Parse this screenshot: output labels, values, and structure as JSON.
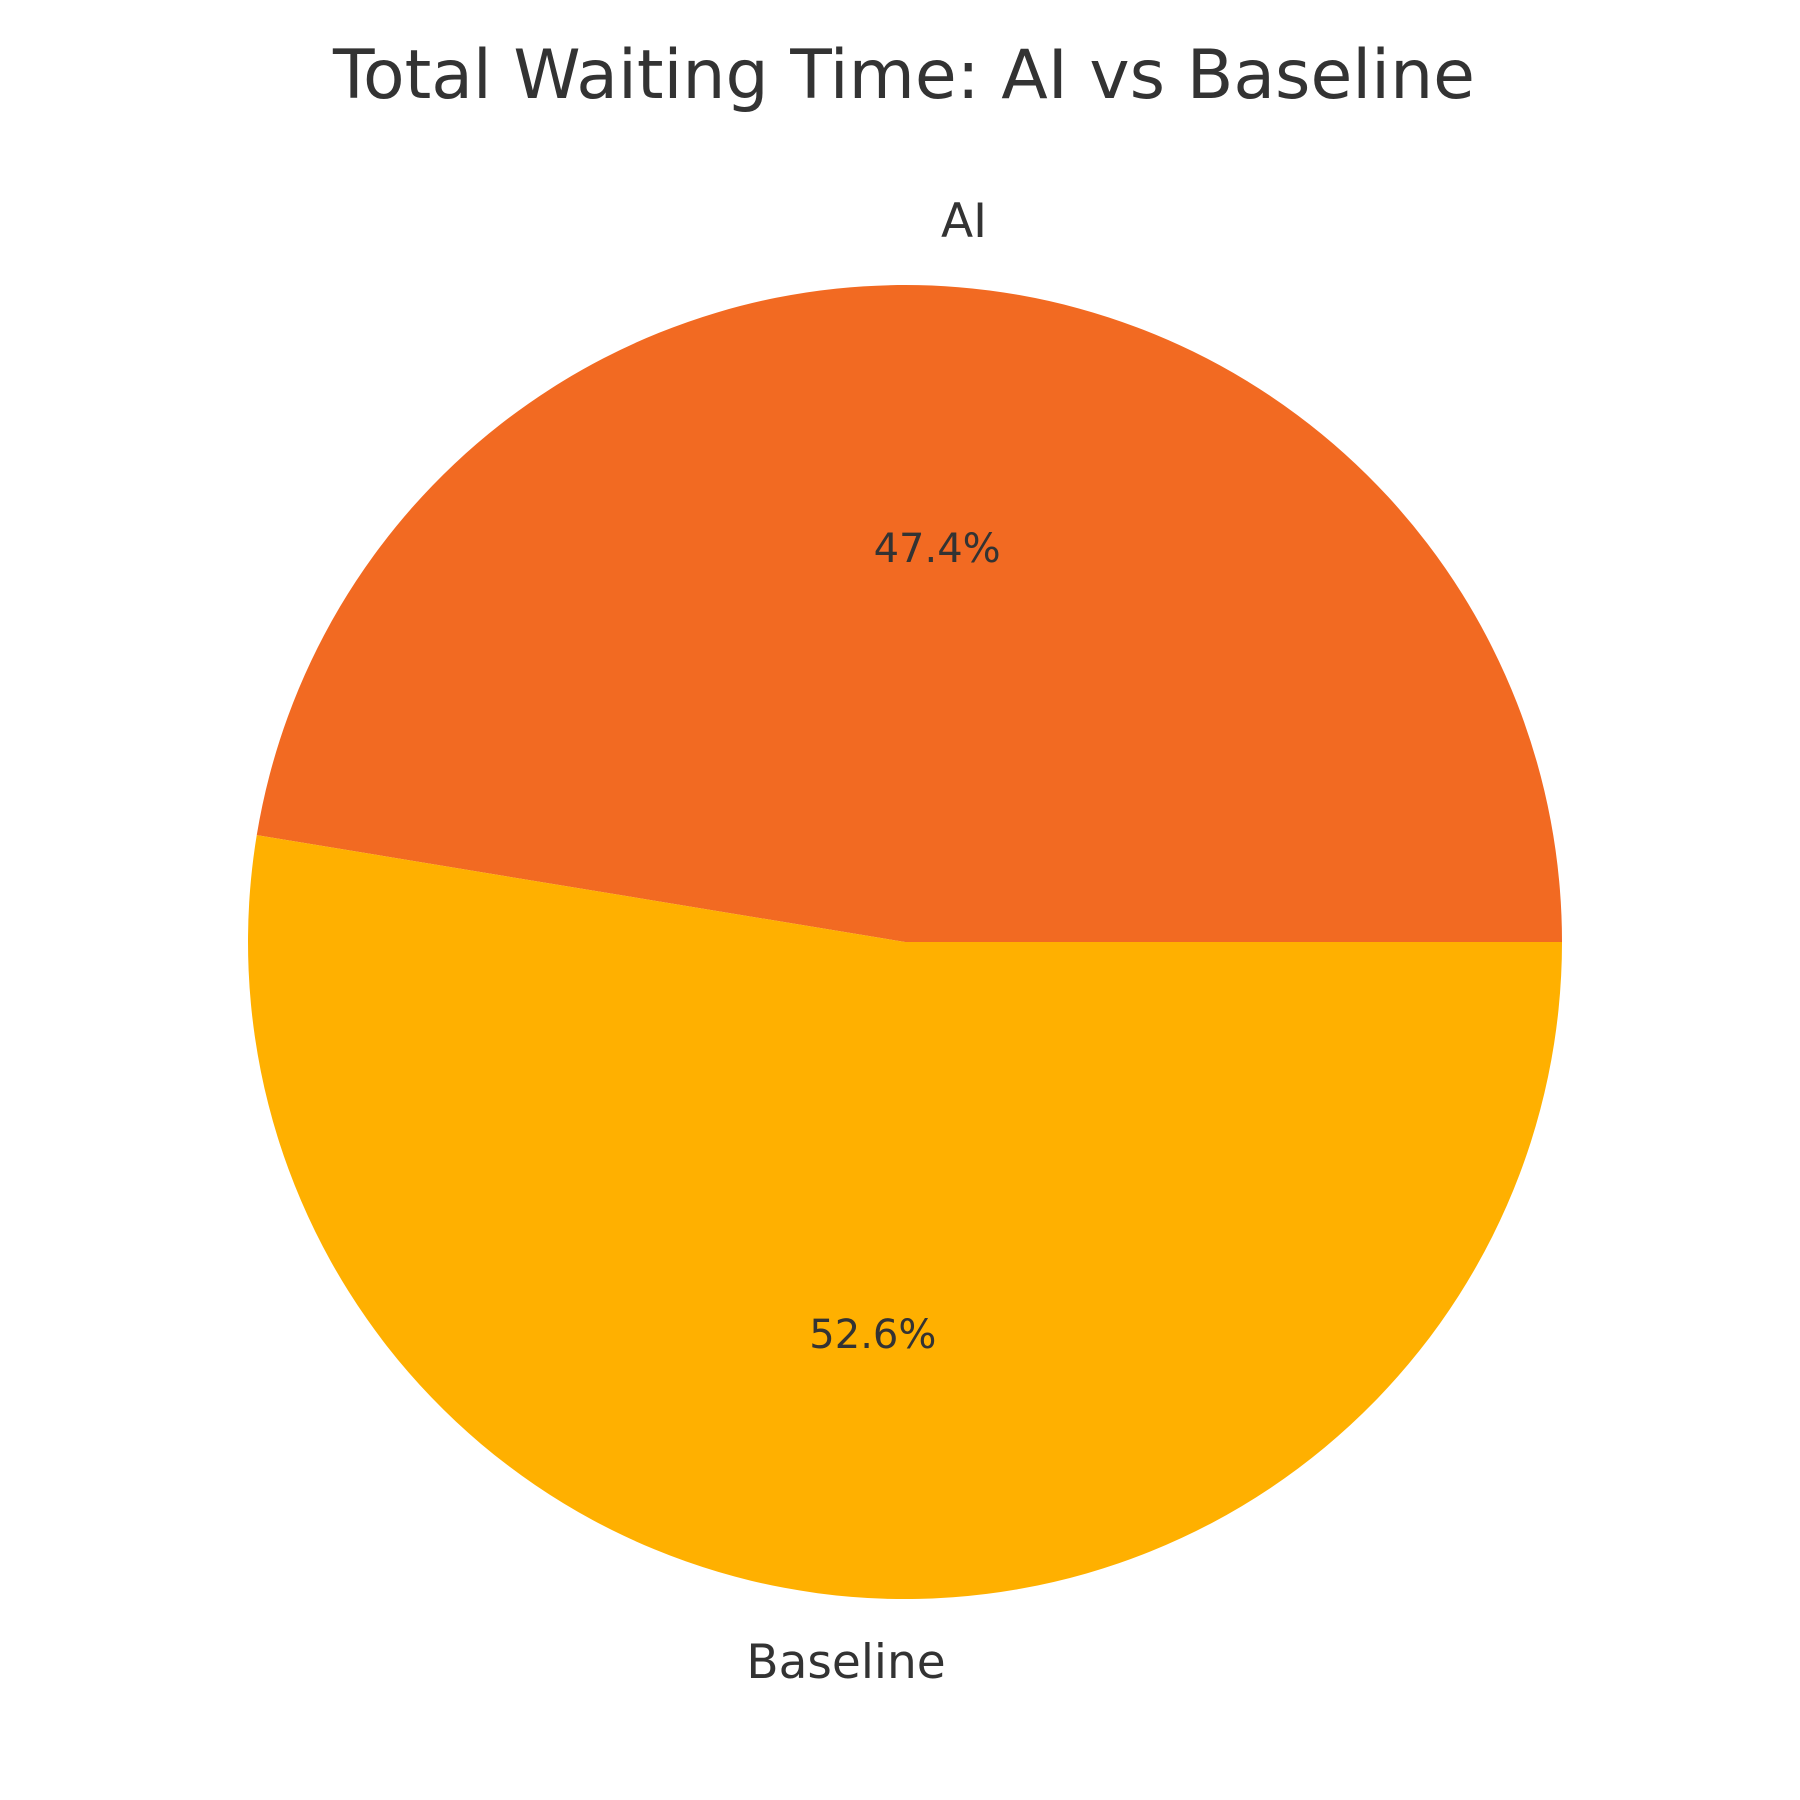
{
  "chart_data": {
    "type": "pie",
    "title": "Total Waiting Time: AI vs Baseline",
    "labels": [
      "AI",
      "Baseline"
    ],
    "values": [
      47.4,
      52.6
    ],
    "percent_labels": [
      "47.4%",
      "52.6%"
    ],
    "colors": [
      "#f26a22",
      "#ffb000"
    ],
    "start_angle_deg": 0,
    "direction": "counterclockwise",
    "legend": "none"
  }
}
